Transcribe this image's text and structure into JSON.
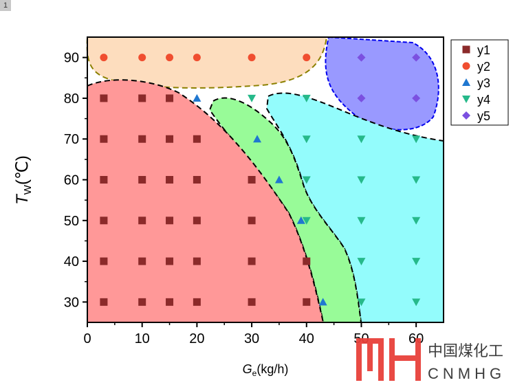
{
  "badge": "1",
  "chart_data": {
    "type": "scatter",
    "xlabel": "Ge(kg/h)",
    "xlabel_main": "G",
    "xlabel_sub": "e",
    "xlabel_unit": "(kg/h)",
    "ylabel_main": "T",
    "ylabel_sub": "W",
    "ylabel_unit": "(℃)",
    "xlim": [
      0,
      65
    ],
    "ylim": [
      25,
      95
    ],
    "xticks": [
      0,
      10,
      20,
      30,
      40,
      50,
      60
    ],
    "yticks": [
      30,
      40,
      50,
      60,
      70,
      80,
      90
    ],
    "legend_position": "top-right-outside",
    "series": [
      {
        "name": "y1",
        "marker": "square",
        "color": "#8B2A2A",
        "points": [
          [
            3,
            80
          ],
          [
            10,
            80
          ],
          [
            15,
            80
          ],
          [
            3,
            70
          ],
          [
            10,
            70
          ],
          [
            15,
            70
          ],
          [
            20,
            70
          ],
          [
            3,
            60
          ],
          [
            10,
            60
          ],
          [
            15,
            60
          ],
          [
            20,
            60
          ],
          [
            30,
            60
          ],
          [
            3,
            50
          ],
          [
            10,
            50
          ],
          [
            15,
            50
          ],
          [
            20,
            50
          ],
          [
            30,
            50
          ],
          [
            3,
            40
          ],
          [
            10,
            40
          ],
          [
            15,
            40
          ],
          [
            20,
            40
          ],
          [
            30,
            40
          ],
          [
            40,
            40
          ],
          [
            3,
            30
          ],
          [
            10,
            30
          ],
          [
            15,
            30
          ],
          [
            20,
            30
          ],
          [
            30,
            30
          ],
          [
            40,
            30
          ]
        ]
      },
      {
        "name": "y2",
        "marker": "circle",
        "color": "#F04E30",
        "points": [
          [
            3,
            90
          ],
          [
            10,
            90
          ],
          [
            15,
            90
          ],
          [
            20,
            90
          ],
          [
            30,
            90
          ],
          [
            40,
            90
          ]
        ]
      },
      {
        "name": "y3",
        "marker": "triangle-up",
        "color": "#1F77D0",
        "points": [
          [
            20,
            80
          ],
          [
            31,
            70
          ],
          [
            35,
            60
          ],
          [
            39,
            50
          ],
          [
            43,
            30
          ]
        ]
      },
      {
        "name": "y4",
        "marker": "triangle-down",
        "color": "#26B98A",
        "points": [
          [
            30,
            80
          ],
          [
            40,
            80
          ],
          [
            40,
            70
          ],
          [
            50,
            70
          ],
          [
            60,
            70
          ],
          [
            40,
            60
          ],
          [
            50,
            60
          ],
          [
            60,
            60
          ],
          [
            40,
            50
          ],
          [
            50,
            50
          ],
          [
            60,
            50
          ],
          [
            50,
            40
          ],
          [
            60,
            40
          ],
          [
            50,
            30
          ],
          [
            60,
            30
          ]
        ]
      },
      {
        "name": "y5",
        "marker": "diamond",
        "color": "#7B50E0",
        "points": [
          [
            50,
            90
          ],
          [
            60,
            90
          ],
          [
            50,
            80
          ],
          [
            60,
            80
          ]
        ]
      }
    ]
  },
  "watermark": {
    "cn": "中国煤化工",
    "en": "CNMHG"
  }
}
